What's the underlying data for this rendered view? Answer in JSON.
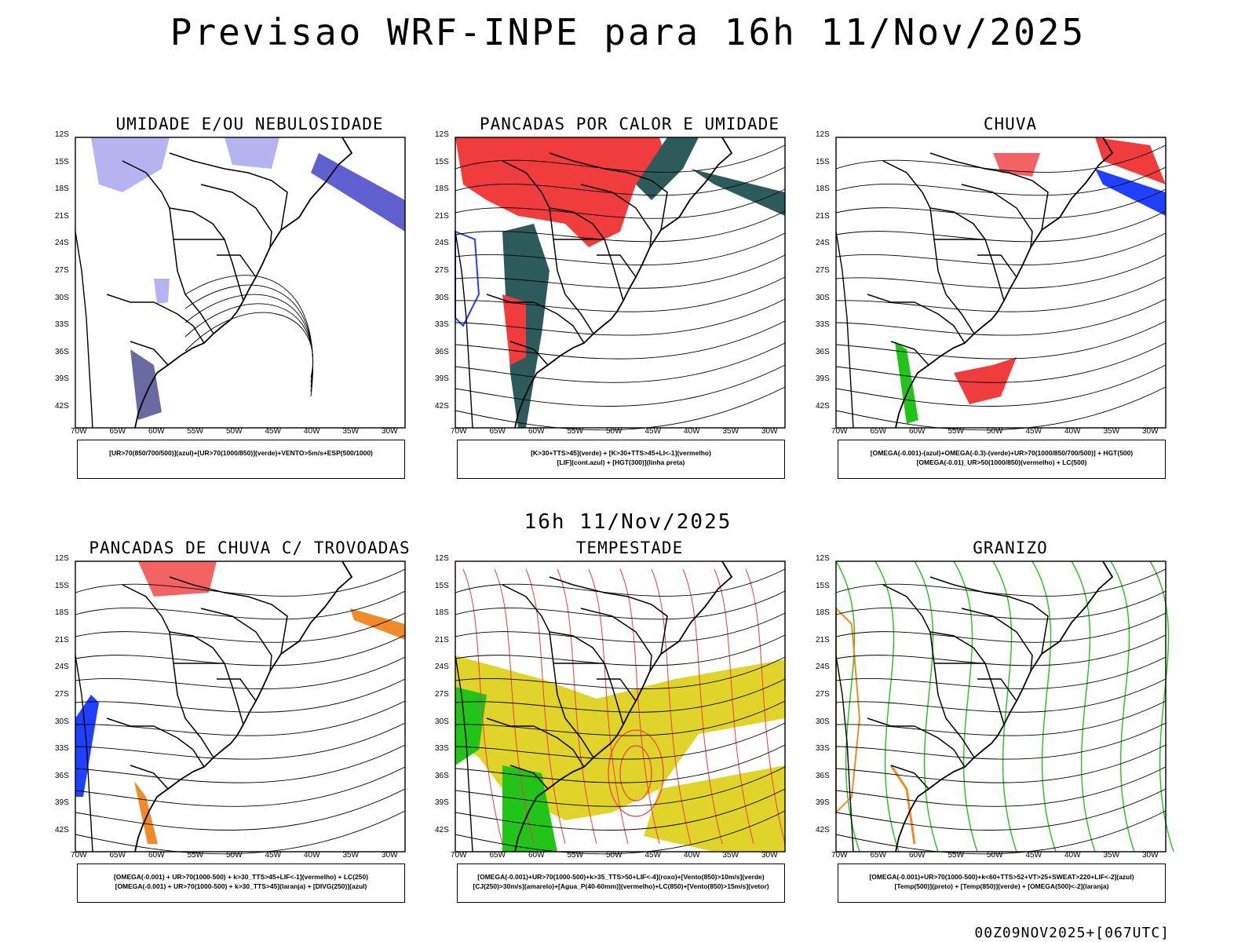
{
  "title": "Previsao WRF-INPE  para 16h 11/Nov/2025",
  "subtitle": "16h 11/Nov/2025",
  "footer": "00Z09NOV2025+[067UTC]",
  "lat_labels": [
    "12S",
    "15S",
    "18S",
    "21S",
    "24S",
    "27S",
    "30S",
    "33S",
    "36S",
    "39S",
    "42S"
  ],
  "lon_labels": [
    "70W",
    "65W",
    "60W",
    "55W",
    "50W",
    "45W",
    "40W",
    "35W",
    "30W"
  ],
  "panels": [
    {
      "title": "UMIDADE E/OU NEBULOSIDADE",
      "legend": [
        "[UR>70(850/700/500)](azul)+[UR>70(1000/850)](verde)+VENTO>5m/s+ESP(500/1000)"
      ]
    },
    {
      "title": "PANCADAS POR CALOR E UMIDADE",
      "legend": [
        "[K>30+TTS>45](verde) + [K>30+TTS>45+LI<-1](vermelho)",
        "[LIF](cont.azul) + [HGT(300)](linha preta)"
      ]
    },
    {
      "title": "CHUVA",
      "legend": [
        "[OMEGA(-0.001)-(azul)+OMEGA(-0.3)-(verde)+UR>70(1000/850/700/500)] + HGT(500)",
        "[OMEGA(-0.01)_UR>50(1000/850)(vermelho) + LC(500)"
      ]
    },
    {
      "title": "PANCADAS DE CHUVA C/ TROVOADAS",
      "legend": [
        "[OMEGA(-0.001) + UR>70(1000-500) + k>30_TTS>45+LIF<-1](vermelho) + LC(250)",
        "[OMEGA(-0.001) + UR>70(1000-500) + k>30_TTS>45](laranja) + [DIVG(250)](azul)"
      ]
    },
    {
      "title": "TEMPESTADE",
      "legend": [
        "[OMEGA(-0.001)+UR>70(1000-500)+k>35_TTS>50+LIF<-4](roxo)+[Vento(850)>10m/s](verde)",
        "[CJ(250)>30m/s](amarelo)+[Agua_P(40-60mm)](vermelho)+LC(850)+[Vento(850)>15m/s](vetor)"
      ]
    },
    {
      "title": "GRANIZO",
      "legend": [
        "[OMEGA(-0.001)+UR>70(1000-500)+k<60+TTS>52+VT>25+SWEAT>220+LIF<-2](azul)",
        "[Temp(500)](preto) + [Temp(850)](verde) + [OMEGA(500)<-2](laranja)"
      ]
    }
  ],
  "colors": {
    "red": "#f03c3c",
    "green": "#22c41a",
    "blue": "#2040ff",
    "lavender": "#b4b4f0",
    "teal": "#2d5b5b",
    "yellow": "#e0d42a",
    "orange": "#f08a2a"
  }
}
